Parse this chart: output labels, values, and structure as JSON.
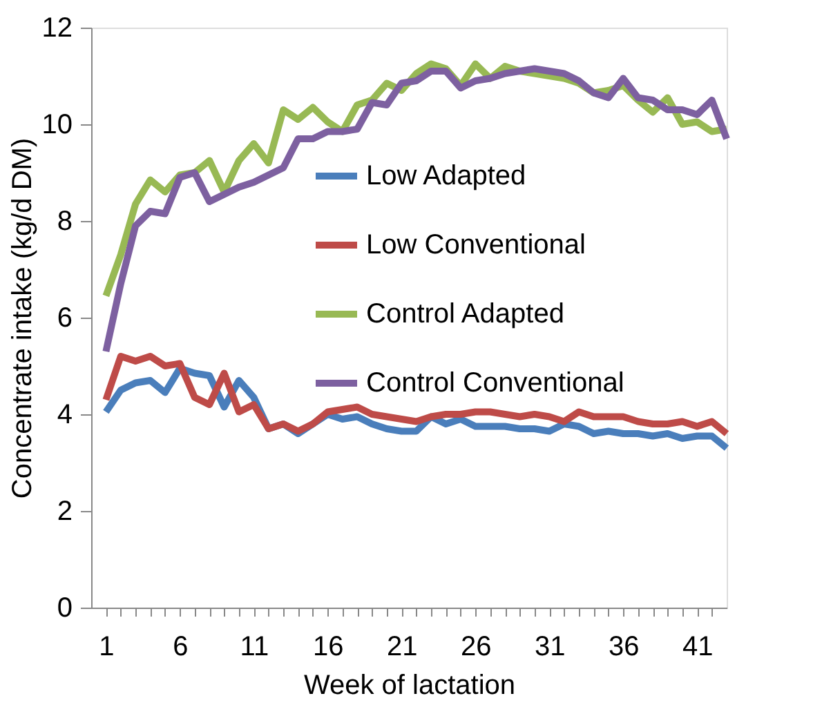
{
  "chart_data": {
    "type": "line",
    "xlabel": "Week of lactation",
    "ylabel": "Concentrate intake (kg/d DM)",
    "x": [
      1,
      2,
      3,
      4,
      5,
      6,
      7,
      8,
      9,
      10,
      11,
      12,
      13,
      14,
      15,
      16,
      17,
      18,
      19,
      20,
      21,
      22,
      23,
      24,
      25,
      26,
      27,
      28,
      29,
      30,
      31,
      32,
      33,
      34,
      35,
      36,
      37,
      38,
      39,
      40,
      41,
      42,
      43
    ],
    "xlim": [
      0,
      43
    ],
    "xticks": [
      1,
      {
        "value": 2,
        "label": null
      },
      {
        "value": 3,
        "label": null
      },
      {
        "value": 4,
        "label": null
      },
      {
        "value": 5,
        "label": null
      },
      6,
      {
        "value": 7,
        "label": null
      },
      {
        "value": 8,
        "label": null
      },
      {
        "value": 9,
        "label": null
      },
      {
        "value": 10,
        "label": null
      },
      11,
      {
        "value": 12,
        "label": null
      },
      {
        "value": 13,
        "label": null
      },
      {
        "value": 14,
        "label": null
      },
      {
        "value": 15,
        "label": null
      },
      16,
      {
        "value": 17,
        "label": null
      },
      {
        "value": 18,
        "label": null
      },
      {
        "value": 19,
        "label": null
      },
      {
        "value": 20,
        "label": null
      },
      21,
      {
        "value": 22,
        "label": null
      },
      {
        "value": 23,
        "label": null
      },
      {
        "value": 24,
        "label": null
      },
      {
        "value": 25,
        "label": null
      },
      26,
      {
        "value": 27,
        "label": null
      },
      {
        "value": 28,
        "label": null
      },
      {
        "value": 29,
        "label": null
      },
      {
        "value": 30,
        "label": null
      },
      31,
      {
        "value": 32,
        "label": null
      },
      {
        "value": 33,
        "label": null
      },
      {
        "value": 34,
        "label": null
      },
      {
        "value": 35,
        "label": null
      },
      36,
      {
        "value": 37,
        "label": null
      },
      {
        "value": 38,
        "label": null
      },
      {
        "value": 39,
        "label": null
      },
      {
        "value": 40,
        "label": null
      },
      41,
      {
        "value": 42,
        "label": null
      }
    ],
    "ylim": [
      0,
      12
    ],
    "yticks": [
      0,
      2,
      4,
      6,
      8,
      10,
      12
    ],
    "grid": false,
    "legend": "right",
    "marker": "none",
    "line_style": "solid",
    "series": [
      {
        "name": "Low Adapted",
        "color": "#4a7ebb",
        "values": [
          4.05,
          4.5,
          4.65,
          4.7,
          4.45,
          4.95,
          4.85,
          4.8,
          4.15,
          4.7,
          4.35,
          3.7,
          3.8,
          3.6,
          3.8,
          4.0,
          3.9,
          3.95,
          3.8,
          3.7,
          3.65,
          3.65,
          3.95,
          3.8,
          3.9,
          3.75,
          3.75,
          3.75,
          3.7,
          3.7,
          3.65,
          3.8,
          3.75,
          3.6,
          3.65,
          3.6,
          3.6,
          3.55,
          3.6,
          3.5,
          3.55,
          3.55,
          3.3
        ]
      },
      {
        "name": "Low Conventional",
        "color": "#be4b48",
        "values": [
          4.3,
          5.2,
          5.1,
          5.2,
          5.0,
          5.05,
          4.35,
          4.2,
          4.85,
          4.05,
          4.2,
          3.7,
          3.8,
          3.65,
          3.8,
          4.05,
          4.1,
          4.15,
          4.0,
          3.95,
          3.9,
          3.85,
          3.95,
          4.0,
          4.0,
          4.05,
          4.05,
          4.0,
          3.95,
          4.0,
          3.95,
          3.85,
          4.05,
          3.95,
          3.95,
          3.95,
          3.85,
          3.8,
          3.8,
          3.85,
          3.75,
          3.85,
          3.6
        ]
      },
      {
        "name": "Control Adapted",
        "color": "#98b954",
        "values": [
          6.45,
          7.3,
          8.35,
          8.85,
          8.6,
          8.95,
          9.0,
          9.25,
          8.6,
          9.25,
          9.6,
          9.2,
          10.3,
          10.1,
          10.35,
          10.05,
          9.85,
          10.4,
          10.5,
          10.85,
          10.7,
          11.05,
          11.25,
          11.15,
          10.8,
          11.25,
          10.95,
          11.2,
          11.1,
          11.05,
          11.0,
          10.95,
          10.85,
          10.65,
          10.7,
          10.8,
          10.5,
          10.25,
          10.55,
          10.0,
          10.05,
          9.85,
          9.9
        ]
      },
      {
        "name": "Control Conventional",
        "color": "#7d60a0",
        "values": [
          5.3,
          6.7,
          7.9,
          8.2,
          8.15,
          8.9,
          9.0,
          8.4,
          8.55,
          8.7,
          8.8,
          8.95,
          9.1,
          9.7,
          9.7,
          9.85,
          9.85,
          9.9,
          10.45,
          10.4,
          10.85,
          10.9,
          11.1,
          11.1,
          10.75,
          10.9,
          10.95,
          11.05,
          11.1,
          11.15,
          11.1,
          11.05,
          10.9,
          10.65,
          10.55,
          10.95,
          10.55,
          10.5,
          10.3,
          10.3,
          10.2,
          10.5,
          9.7
        ]
      }
    ]
  }
}
